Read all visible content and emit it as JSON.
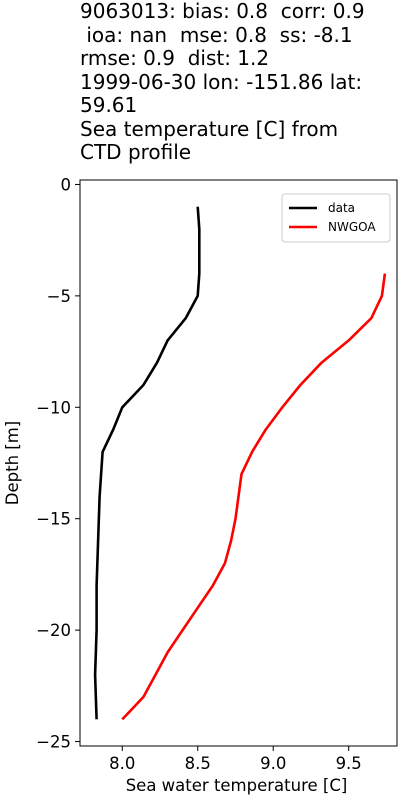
{
  "title_lines": [
    "9063013: bias: 0.8  corr: 0.9",
    " ioa: nan  mse: 0.8  ss: -8.1",
    "rmse: 0.9  dist: 1.2",
    "1999-06-30 lon: -151.86 lat:",
    "59.61",
    "Sea temperature [C] from",
    "CTD profile"
  ],
  "chart_data": {
    "type": "line",
    "xlabel": "Sea water temperature [C]",
    "ylabel": "Depth [m]",
    "xlim": [
      7.72,
      9.82
    ],
    "ylim": [
      -25.2,
      0.2
    ],
    "xticks": [
      8.0,
      8.5,
      9.0,
      9.5
    ],
    "xtick_labels": [
      "8.0",
      "8.5",
      "9.0",
      "9.5"
    ],
    "yticks": [
      0,
      -5,
      -10,
      -15,
      -20,
      -25
    ],
    "ytick_labels": [
      "0",
      "−5",
      "−10",
      "−15",
      "−20",
      "−25"
    ],
    "grid": false,
    "legend_position": "top-right",
    "series": [
      {
        "name": "data",
        "color": "#000000",
        "points": [
          [
            8.5,
            -1
          ],
          [
            8.51,
            -2
          ],
          [
            8.51,
            -3
          ],
          [
            8.51,
            -4
          ],
          [
            8.5,
            -5
          ],
          [
            8.42,
            -6
          ],
          [
            8.3,
            -7
          ],
          [
            8.23,
            -8
          ],
          [
            8.14,
            -9
          ],
          [
            8.0,
            -10
          ],
          [
            7.94,
            -11
          ],
          [
            7.87,
            -12
          ],
          [
            7.85,
            -14
          ],
          [
            7.84,
            -16
          ],
          [
            7.83,
            -18
          ],
          [
            7.83,
            -20
          ],
          [
            7.82,
            -22
          ],
          [
            7.83,
            -24
          ]
        ]
      },
      {
        "name": "NWGOA",
        "color": "#ff0000",
        "points": [
          [
            9.74,
            -4
          ],
          [
            9.72,
            -5
          ],
          [
            9.65,
            -6
          ],
          [
            9.5,
            -7
          ],
          [
            9.32,
            -8
          ],
          [
            9.18,
            -9
          ],
          [
            9.06,
            -10
          ],
          [
            8.95,
            -11
          ],
          [
            8.86,
            -12
          ],
          [
            8.79,
            -13
          ],
          [
            8.77,
            -14
          ],
          [
            8.75,
            -15
          ],
          [
            8.72,
            -16
          ],
          [
            8.68,
            -17
          ],
          [
            8.6,
            -18
          ],
          [
            8.5,
            -19
          ],
          [
            8.4,
            -20
          ],
          [
            8.3,
            -21
          ],
          [
            8.22,
            -22
          ],
          [
            8.14,
            -23
          ],
          [
            8.0,
            -24
          ]
        ]
      }
    ]
  }
}
